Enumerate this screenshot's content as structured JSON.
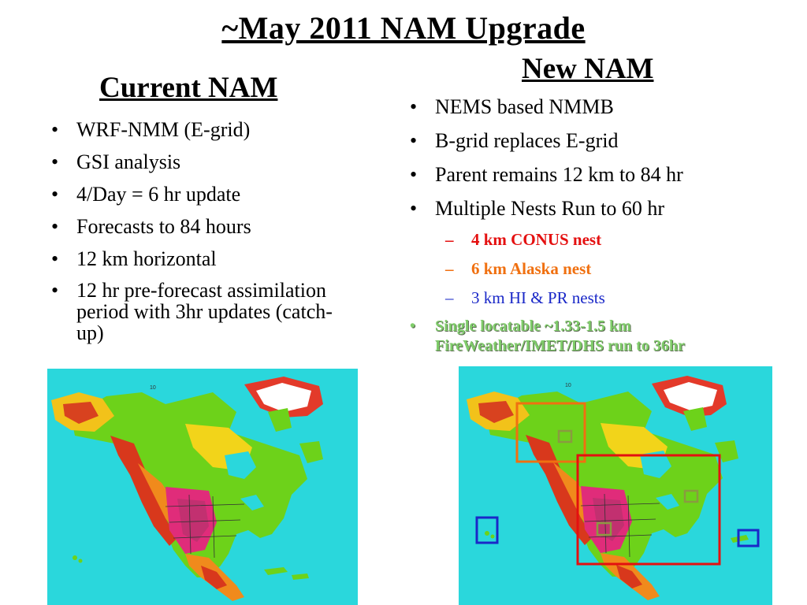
{
  "title": "~May 2011 NAM Upgrade",
  "current": {
    "heading": "Current NAM",
    "bullets": [
      "WRF-NMM (E-grid)",
      "GSI analysis",
      "4/Day = 6 hr update",
      "Forecasts to 84 hours",
      "12 km horizontal",
      "12 hr pre-forecast assimilation period with 3hr updates (catch-up)"
    ]
  },
  "new": {
    "heading": "New NAM",
    "bullets": [
      "NEMS based NMMB",
      "B-grid replaces E-grid",
      "Parent remains 12 km to 84 hr",
      "Multiple Nests Run to 60 hr"
    ],
    "nests": [
      {
        "label": "4 km CONUS nest",
        "color": "#e41010"
      },
      {
        "label": "6 km Alaska nest",
        "color": "#f07010"
      },
      {
        "label": "3 km HI & PR nests",
        "color": "#1a28c8"
      }
    ],
    "fireweather": "Single locatable ~1.33-1.5 km FireWeather/IMET/DHS run to 36hr"
  },
  "maps": {
    "left": {
      "label": "10"
    },
    "right": {
      "label": "10"
    }
  },
  "colors": {
    "ocean": "#2ad7dc",
    "conus": "#e41010",
    "alaska": "#f07010",
    "hi_pr": "#1a28c8",
    "fireweather": "#7fcc6a"
  }
}
